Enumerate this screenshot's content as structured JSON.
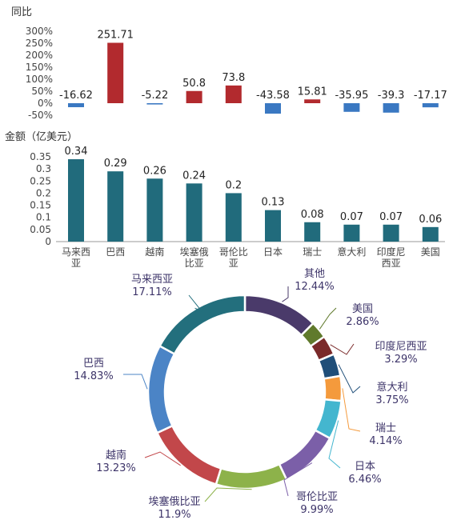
{
  "chart_data": [
    {
      "type": "bar",
      "title": "同比",
      "ylabel": "同比",
      "yticks": [
        "300%",
        "250%",
        "200%",
        "150%",
        "100%",
        "50%",
        "0%",
        "-50%"
      ],
      "ylim": [
        -50,
        300
      ],
      "categories": [
        "马来西亚",
        "巴西",
        "越南",
        "埃塞俄比亚",
        "哥伦比亚",
        "日本",
        "瑞士",
        "意大利",
        "印度尼西亚",
        "美国"
      ],
      "values": [
        -16.62,
        251.71,
        -5.22,
        50.8,
        73.8,
        -43.58,
        15.81,
        -35.95,
        -39.3,
        -17.17
      ],
      "value_labels": [
        "-16.62",
        "251.71",
        "-5.22",
        "50.8",
        "73.8",
        "-43.58",
        "15.81",
        "-35.95",
        "-39.3",
        "-17.17"
      ],
      "colors": {
        "positive": "#b22a2e",
        "negative": "#3a78c2"
      }
    },
    {
      "type": "bar",
      "title": "金额（亿美元）",
      "ylabel": "金额（亿美元）",
      "yticks": [
        "0.35",
        "0.3",
        "0.25",
        "0.2",
        "0.15",
        "0.1",
        "0.05",
        "0"
      ],
      "ylim": [
        0,
        0.35
      ],
      "categories": [
        "马来西亚",
        "巴西",
        "越南",
        "埃塞俄比亚",
        "哥伦比亚",
        "日本",
        "瑞士",
        "意大利",
        "印度尼西亚",
        "美国"
      ],
      "category_lines": [
        [
          "马来西",
          "亚"
        ],
        [
          "巴西"
        ],
        [
          "越南"
        ],
        [
          "埃塞俄",
          "比亚"
        ],
        [
          "哥伦比",
          "亚"
        ],
        [
          "日本"
        ],
        [
          "瑞士"
        ],
        [
          "意大利"
        ],
        [
          "印度尼",
          "西亚"
        ],
        [
          "美国"
        ]
      ],
      "values": [
        0.34,
        0.29,
        0.26,
        0.24,
        0.2,
        0.13,
        0.08,
        0.07,
        0.07,
        0.06
      ],
      "value_labels": [
        "0.34",
        "0.29",
        "0.26",
        "0.24",
        "0.2",
        "0.13",
        "0.08",
        "0.07",
        "0.07",
        "0.06"
      ],
      "color": "#216b7c"
    },
    {
      "type": "pie",
      "donut": true,
      "slices": [
        {
          "name": "其他",
          "pct": "12.44%",
          "value": 12.44,
          "color": "#4a3a6a"
        },
        {
          "name": "美国",
          "pct": "2.86%",
          "value": 2.86,
          "color": "#607a2c"
        },
        {
          "name": "印度尼西亚",
          "pct": "3.29%",
          "value": 3.29,
          "color": "#7a2a2a"
        },
        {
          "name": "意大利",
          "pct": "3.75%",
          "value": 3.75,
          "color": "#1f4e79"
        },
        {
          "name": "瑞士",
          "pct": "4.14%",
          "value": 4.14,
          "color": "#f49a3c"
        },
        {
          "name": "日本",
          "pct": "6.46%",
          "value": 6.46,
          "color": "#44b6cf"
        },
        {
          "name": "哥伦比亚",
          "pct": "9.99%",
          "value": 9.99,
          "color": "#7b5fa8"
        },
        {
          "name": "埃塞俄比亚",
          "pct": "11.9%",
          "value": 11.9,
          "color": "#8db24a"
        },
        {
          "name": "越南",
          "pct": "13.23%",
          "value": 13.23,
          "color": "#c2474a"
        },
        {
          "name": "巴西",
          "pct": "14.83%",
          "value": 14.83,
          "color": "#4b84c6"
        },
        {
          "name": "马来西亚",
          "pct": "17.11%",
          "value": 17.11,
          "color": "#236f7d"
        }
      ],
      "label_text_color": "#3d3469"
    }
  ]
}
